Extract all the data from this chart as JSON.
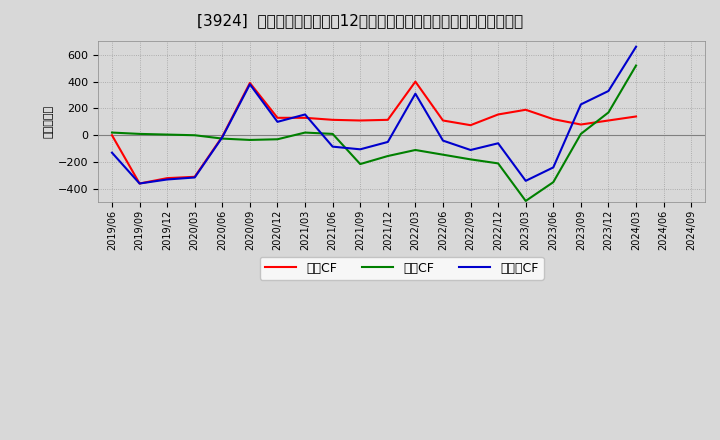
{
  "title": "[3924]  キャッシュフローの12か月移動合計の対前年同期増減額の推移",
  "ylabel": "（百万円）",
  "background_color": "#d8d8d8",
  "plot_bg_color": "#d8d8d8",
  "dates": [
    "2019/06",
    "2019/09",
    "2019/12",
    "2020/03",
    "2020/06",
    "2020/09",
    "2020/12",
    "2021/03",
    "2021/06",
    "2021/09",
    "2021/12",
    "2022/03",
    "2022/06",
    "2022/09",
    "2022/12",
    "2023/03",
    "2023/06",
    "2023/09",
    "2023/12",
    "2024/03",
    "2024/06",
    "2024/09"
  ],
  "eigyo_cf": [
    0,
    -360,
    -320,
    -310,
    -10,
    390,
    130,
    130,
    115,
    110,
    115,
    400,
    110,
    75,
    155,
    190,
    120,
    80,
    110,
    140,
    null,
    null
  ],
  "toshi_cf": [
    20,
    10,
    5,
    0,
    -25,
    -35,
    -30,
    20,
    10,
    -215,
    -155,
    -110,
    -145,
    -180,
    -210,
    -490,
    -350,
    10,
    170,
    520,
    null,
    null
  ],
  "free_cf": [
    -130,
    -360,
    -330,
    -315,
    -15,
    380,
    100,
    155,
    -85,
    -105,
    -50,
    310,
    -40,
    -110,
    -60,
    -340,
    -240,
    230,
    330,
    660,
    null,
    null
  ],
  "ylim": [
    -500,
    700
  ],
  "yticks": [
    -400,
    -200,
    0,
    200,
    400,
    600
  ],
  "line_color_eigyo": "#ff0000",
  "line_color_toshi": "#008000",
  "line_color_free": "#0000cd",
  "legend_labels": [
    "営業CF",
    "投資CF",
    "フリーCF"
  ],
  "grid_color": "#a0a0a0",
  "zero_line_color": "#808080",
  "title_fontsize": 11,
  "axis_fontsize": 8,
  "legend_fontsize": 9
}
